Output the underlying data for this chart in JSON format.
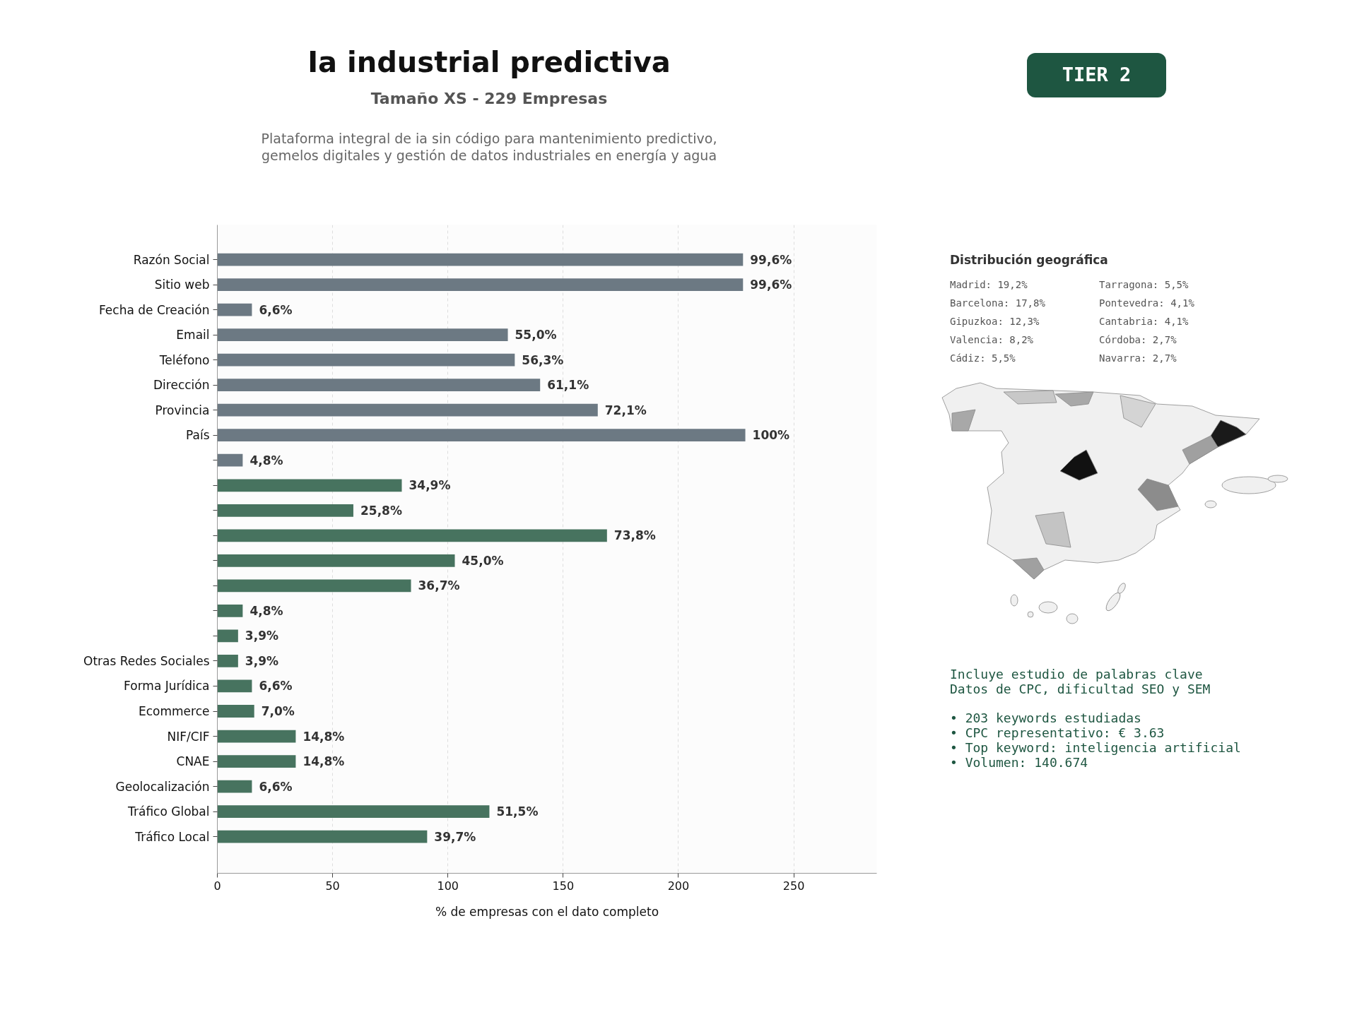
{
  "chart_data": [
    {
      "type": "bar",
      "orientation": "horizontal",
      "title": "Ia industrial predictiva",
      "subtitle": "Tamaño XS - 229 Empresas",
      "xlabel": "% de empresas con el dato completo",
      "annotations": [
        "Plataforma integral de ia sin código para mantenimiento predictivo,\ngemelos digitales y gestión de datos industriales en energía y agua",
        "TIER 2",
        {
          "text": "99,6%",
          "x": 228,
          "y": "Razón Social"
        },
        {
          "text": "99,6%",
          "x": 228,
          "y": "Sitio web"
        },
        {
          "text": "6,6%",
          "x": 15,
          "y": "Fecha de Creación"
        },
        {
          "text": "55,0%",
          "x": 126,
          "y": "Email"
        },
        {
          "text": "56,3%",
          "x": 129,
          "y": "Teléfono"
        },
        {
          "text": "61,1%",
          "x": 140,
          "y": "Dirección"
        },
        {
          "text": "72,1%",
          "x": 165,
          "y": "Provincia"
        },
        {
          "text": "100%",
          "x": 229,
          "y": "País"
        },
        {
          "text": "4,8%",
          "x": 11
        },
        {
          "text": "34,9%",
          "x": 80
        },
        {
          "text": "25,8%",
          "x": 59
        },
        {
          "text": "73,8%",
          "x": 169
        },
        {
          "text": "45,0%",
          "x": 103
        },
        {
          "text": "36,7%",
          "x": 84
        },
        {
          "text": "4,8%",
          "x": 11
        },
        {
          "text": "3,9%",
          "x": 9
        },
        {
          "text": "3,9%",
          "x": 9,
          "y": "Otras Redes Sociales"
        },
        {
          "text": "6,6%",
          "x": 15,
          "y": "Forma Jurídica"
        },
        {
          "text": "7,0%",
          "x": 16,
          "y": "Ecommerce"
        },
        {
          "text": "14,8%",
          "x": 34,
          "y": "NIF/CIF"
        },
        {
          "text": "14,8%",
          "x": 34,
          "y": "CNAE"
        },
        {
          "text": "6,6%",
          "x": 15,
          "y": "Geolocalización"
        },
        {
          "text": "51,5%",
          "x": 118,
          "y": "Tráfico Global"
        },
        {
          "text": "39,7%",
          "x": 91,
          "y": "Tráfico Local"
        }
      ],
      "categories": [
        "Razón Social",
        "Sitio web",
        "Fecha de Creación",
        "Email",
        "Teléfono",
        "Dirección",
        "Provincia",
        "País",
        null,
        null,
        null,
        null,
        null,
        null,
        null,
        null,
        "Otras Redes Sociales",
        "Forma Jurídica",
        "Ecommerce",
        "NIF/CIF",
        "CNAE",
        "Geolocalización",
        "Tráfico Global",
        "Tráfico Local"
      ],
      "values": [
        228,
        228,
        15,
        126,
        129,
        140,
        165,
        229,
        11,
        80,
        59,
        169,
        103,
        84,
        11,
        9,
        9,
        15,
        16,
        34,
        34,
        15,
        118,
        91
      ],
      "colors": [
        "#6c7983",
        "#6c7983",
        "#6c7983",
        "#6c7983",
        "#6c7983",
        "#6c7983",
        "#6c7983",
        "#6c7983",
        "#6c7983",
        "#47735f",
        "#47735f",
        "#47735f",
        "#47735f",
        "#47735f",
        "#47735f",
        "#47735f",
        "#47735f",
        "#47735f",
        "#47735f",
        "#47735f",
        "#47735f",
        "#47735f",
        "#47735f",
        "#47735f"
      ],
      "xlim": [
        0,
        286
      ],
      "xticks": [
        0,
        50,
        100,
        150,
        200,
        250
      ],
      "grid": "x"
    },
    {
      "type": "other",
      "title": "Distribución geográfica",
      "annotations": [
        "Madrid: 19,2%",
        "Barcelona: 17,8%",
        "Gipuzkoa: 12,3%",
        "Valencia: 8,2%",
        "Cádiz: 5,5%",
        "Tarragona: 5,5%",
        "Pontevedra: 4,1%",
        "Cantabria: 4,1%",
        "Córdoba: 2,7%",
        "Navarra: 2,7%"
      ]
    },
    {
      "type": "other",
      "annotations": [
        "Incluye estudio de palabras clave\nDatos de CPC, dificultad SEO y SEM",
        "• 203 keywords estudiadas\n• CPC representativo: € 3.63\n• Top keyword: inteligencia artificial\n• Volumen: 140.674"
      ]
    }
  ]
}
